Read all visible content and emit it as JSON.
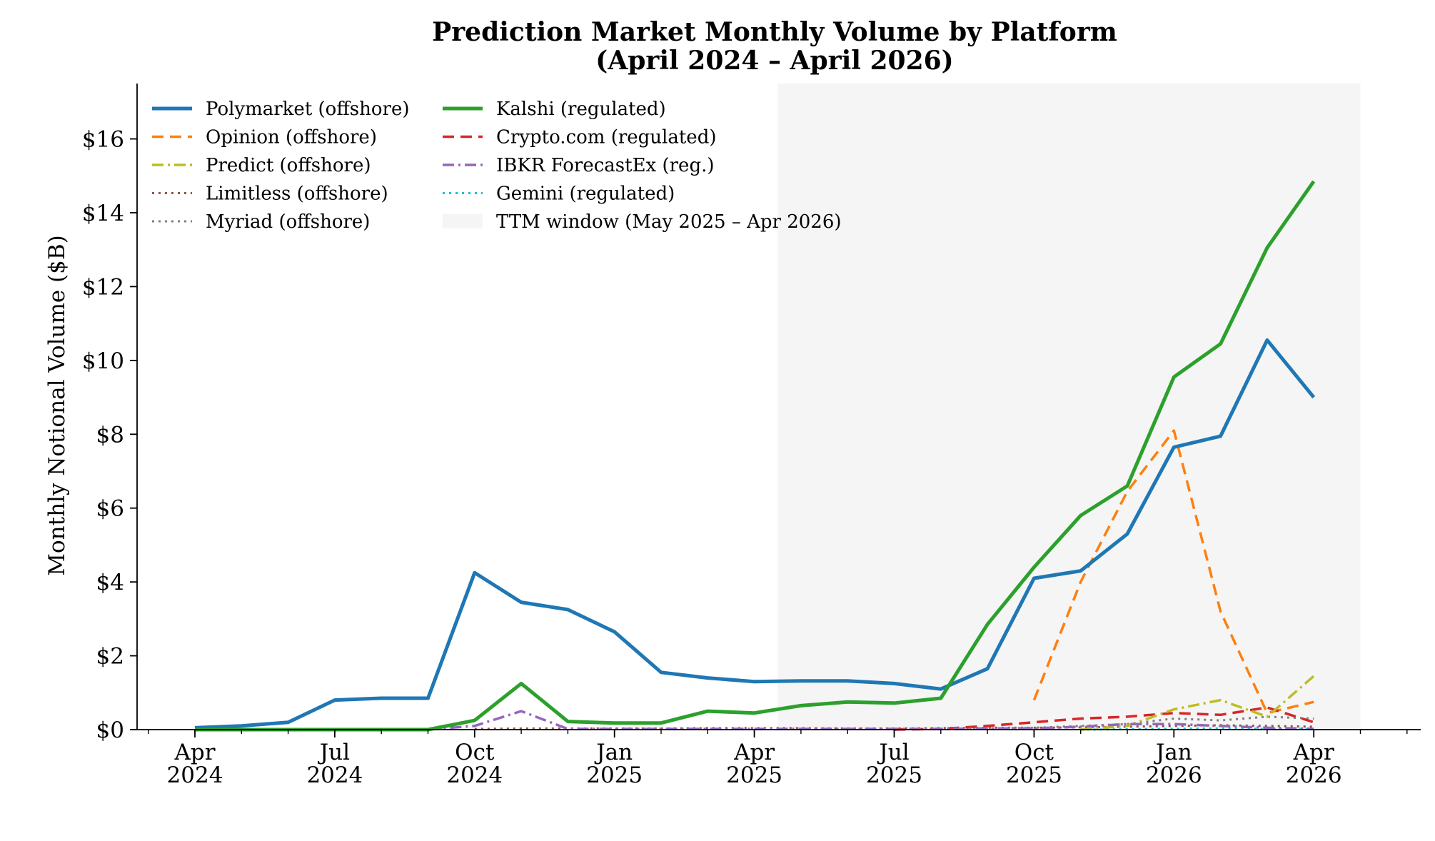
{
  "chart_data": {
    "type": "line",
    "title": "Prediction Market Monthly Volume by Platform",
    "subtitle": "(April 2024 – April 2026)",
    "xlabel": "",
    "ylabel": "Monthly Notional Volume ($B)",
    "ylim": [
      0,
      17.5
    ],
    "y_ticks": [
      0,
      2,
      4,
      6,
      8,
      10,
      12,
      14,
      16
    ],
    "y_tick_labels": [
      "$0",
      "$2",
      "$4",
      "$6",
      "$8",
      "$10",
      "$12",
      "$14",
      "$16"
    ],
    "x_tick_labels": [
      {
        "month": "2024-04",
        "line1": "Apr",
        "line2": "2024"
      },
      {
        "month": "2024-07",
        "line1": "Jul",
        "line2": "2024"
      },
      {
        "month": "2024-10",
        "line1": "Oct",
        "line2": "2024"
      },
      {
        "month": "2025-01",
        "line1": "Jan",
        "line2": "2025"
      },
      {
        "month": "2025-04",
        "line1": "Apr",
        "line2": "2025"
      },
      {
        "month": "2025-07",
        "line1": "Jul",
        "line2": "2025"
      },
      {
        "month": "2025-10",
        "line1": "Oct",
        "line2": "2025"
      },
      {
        "month": "2026-01",
        "line1": "Jan",
        "line2": "2026"
      },
      {
        "month": "2026-04",
        "line1": "Apr",
        "line2": "2026"
      }
    ],
    "grid": false,
    "legend_position": "top-left",
    "shaded_region": {
      "label": "TTM window (May 2025 – Apr 2026)",
      "start": "2025-05",
      "end": "2026-04",
      "color": "#f5f5f5"
    },
    "x": [
      "2024-04",
      "2024-05",
      "2024-06",
      "2024-07",
      "2024-08",
      "2024-09",
      "2024-10",
      "2024-11",
      "2024-12",
      "2025-01",
      "2025-02",
      "2025-03",
      "2025-04",
      "2025-05",
      "2025-06",
      "2025-07",
      "2025-08",
      "2025-09",
      "2025-10",
      "2025-11",
      "2025-12",
      "2026-01",
      "2026-02",
      "2026-03",
      "2026-04"
    ],
    "series": [
      {
        "name": "Polymarket (offshore)",
        "color": "#1f77b4",
        "style": "solid",
        "width": 5,
        "values": [
          0.05,
          0.1,
          0.2,
          0.8,
          0.85,
          0.85,
          4.25,
          3.45,
          3.25,
          2.65,
          1.55,
          1.4,
          1.3,
          1.32,
          1.32,
          1.25,
          1.1,
          1.65,
          4.1,
          4.3,
          5.3,
          7.65,
          7.95,
          10.55,
          9.0
        ]
      },
      {
        "name": "Kalshi (regulated)",
        "color": "#2ca02c",
        "style": "solid",
        "width": 5,
        "values": [
          0,
          0,
          0,
          0,
          0,
          0,
          0.25,
          1.25,
          0.22,
          0.18,
          0.18,
          0.5,
          0.45,
          0.65,
          0.75,
          0.72,
          0.85,
          2.85,
          4.4,
          5.8,
          6.6,
          9.55,
          10.45,
          13.05,
          14.85
        ]
      },
      {
        "name": "Opinion (offshore)",
        "color": "#ff7f0e",
        "style": "dashed",
        "width": 3.5,
        "values": [
          null,
          null,
          null,
          null,
          null,
          null,
          null,
          null,
          null,
          null,
          null,
          null,
          null,
          null,
          null,
          null,
          null,
          null,
          0.8,
          4.0,
          6.45,
          8.1,
          3.2,
          0.45,
          0.75
        ]
      },
      {
        "name": "Crypto.com (regulated)",
        "color": "#d62728",
        "style": "dashed",
        "width": 3.5,
        "values": [
          null,
          null,
          null,
          null,
          null,
          null,
          null,
          null,
          null,
          null,
          null,
          null,
          null,
          null,
          null,
          0,
          0.02,
          0.1,
          0.2,
          0.3,
          0.35,
          0.45,
          0.4,
          0.6,
          0.2
        ]
      },
      {
        "name": "Predict (offshore)",
        "color": "#bcbd22",
        "style": "dashdot",
        "width": 3.5,
        "values": [
          null,
          null,
          null,
          null,
          null,
          null,
          null,
          null,
          null,
          null,
          null,
          null,
          null,
          null,
          null,
          null,
          null,
          null,
          null,
          0,
          0.1,
          0.55,
          0.8,
          0.35,
          1.45
        ]
      },
      {
        "name": "IBKR ForecastEx (reg.)",
        "color": "#9467bd",
        "style": "dashdot",
        "width": 3.5,
        "values": [
          null,
          null,
          null,
          null,
          null,
          0,
          0.1,
          0.5,
          0.02,
          0.02,
          0.02,
          0.02,
          0.02,
          0.02,
          0.02,
          0.02,
          0.02,
          0.03,
          0.03,
          0.08,
          0.15,
          0.15,
          0.1,
          0.05,
          0.02
        ]
      },
      {
        "name": "Limitless (offshore)",
        "color": "#8c564b",
        "style": "dotted",
        "width": 3,
        "values": [
          null,
          null,
          null,
          null,
          null,
          null,
          0.02,
          0.03,
          0.03,
          0.03,
          0.03,
          0.04,
          0.04,
          0.04,
          0.03,
          0.03,
          0.04,
          0.05,
          0.05,
          0.06,
          0.08,
          0.1,
          0.12,
          0.1,
          0.08
        ]
      },
      {
        "name": "Gemini (regulated)",
        "color": "#17becf",
        "style": "dotted",
        "width": 3,
        "values": [
          null,
          null,
          null,
          null,
          null,
          null,
          null,
          null,
          null,
          null,
          null,
          null,
          null,
          null,
          null,
          null,
          null,
          null,
          null,
          0,
          0.01,
          0.02,
          0.03,
          0.02,
          0.02
        ]
      },
      {
        "name": "Myriad (offshore)",
        "color": "#7f7f7f",
        "style": "dotted",
        "width": 3,
        "values": [
          null,
          null,
          null,
          null,
          null,
          null,
          null,
          null,
          null,
          null,
          null,
          null,
          null,
          null,
          null,
          null,
          0.01,
          0.03,
          0.05,
          0.1,
          0.15,
          0.3,
          0.25,
          0.35,
          0.3
        ]
      }
    ]
  },
  "legend": {
    "col1": [
      "Polymarket (offshore)",
      "Opinion (offshore)",
      "Predict (offshore)",
      "Limitless (offshore)",
      "Myriad (offshore)"
    ],
    "col2": [
      "Kalshi (regulated)",
      "Crypto.com (regulated)",
      "IBKR ForecastEx (reg.)",
      "Gemini (regulated)",
      "TTM window (May 2025 – Apr 2026)"
    ]
  }
}
